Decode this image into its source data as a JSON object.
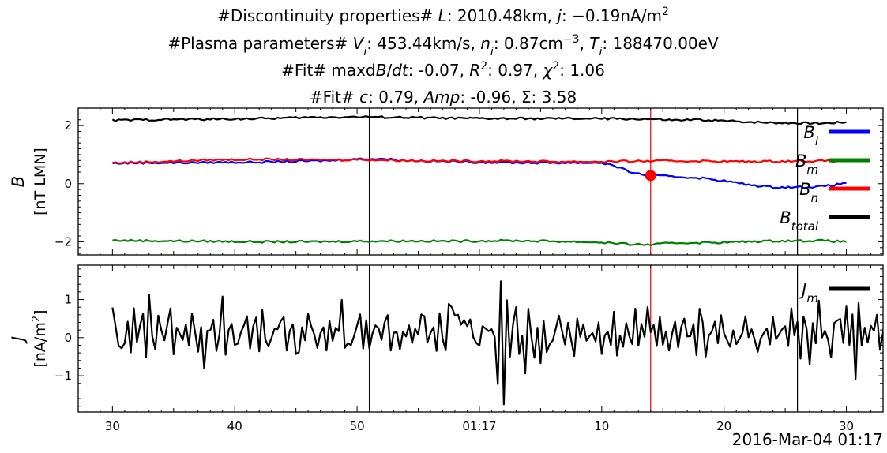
{
  "titles": {
    "line1": "#Discontinuity properties# L: 2010.48km, j: −0.19nA/m²",
    "line2": "#Plasma parameters# Vi: 453.44km/s, ni: 0.87cm⁻³, Ti: 188470.00eV",
    "line3": "#Fit# maxdB/dt: -0.07, R²: 0.97, χ²: 1.06",
    "line4": "#Fit# c: 0.79, Amp: -0.96, Σ: 3.58"
  },
  "x_axis": {
    "ticks": [
      {
        "t": 30,
        "label": "30"
      },
      {
        "t": 40,
        "label": "40"
      },
      {
        "t": 50,
        "label": "50"
      },
      {
        "t": 60,
        "label": "01:17"
      },
      {
        "t": 70,
        "label": "10"
      },
      {
        "t": 80,
        "label": "20"
      },
      {
        "t": 90,
        "label": "30"
      }
    ],
    "range": [
      27.2,
      93.0
    ],
    "datetime_label": "2016-Mar-04 01:17"
  },
  "colors": {
    "Bl": "#0000ff",
    "Bm": "#008000",
    "Bn": "#ff0000",
    "Btotal": "#000000",
    "Jm": "#000000",
    "marker_lines": "#000000",
    "event_line": "#ff0000"
  },
  "chart_data": [
    {
      "type": "line",
      "ylabel": "B",
      "yunit": "[nT LMN]",
      "ylim": [
        -2.45,
        2.6
      ],
      "yticks": [
        -2,
        0,
        2
      ],
      "legend_position": "right",
      "vlines": [
        51,
        86
      ],
      "event_line": 74,
      "event_point": {
        "x": 74,
        "y": 0.28
      },
      "series": [
        {
          "key": "Bl",
          "name": "B_l",
          "kind": "Bl",
          "points": [
            [
              30,
              0.7
            ],
            [
              33,
              0.72
            ],
            [
              36,
              0.72
            ],
            [
              39,
              0.74
            ],
            [
              42,
              0.74
            ],
            [
              45,
              0.77
            ],
            [
              48,
              0.8
            ],
            [
              50,
              0.85
            ],
            [
              52,
              0.86
            ],
            [
              54,
              0.8
            ],
            [
              57,
              0.77
            ],
            [
              60,
              0.74
            ],
            [
              63,
              0.72
            ],
            [
              66,
              0.72
            ],
            [
              69,
              0.72
            ],
            [
              70,
              0.72
            ],
            [
              71,
              0.62
            ],
            [
              72,
              0.45
            ],
            [
              73,
              0.34
            ],
            [
              74,
              0.28
            ],
            [
              75,
              0.26
            ],
            [
              76,
              0.24
            ],
            [
              78,
              0.2
            ],
            [
              80,
              0.1
            ],
            [
              82,
              -0.04
            ],
            [
              84,
              -0.12
            ],
            [
              86,
              -0.12
            ],
            [
              88,
              -0.1
            ],
            [
              90,
              0.02
            ]
          ]
        },
        {
          "key": "Bm",
          "name": "B_m",
          "kind": "Bm",
          "points": [
            [
              30,
              -1.95
            ],
            [
              34,
              -1.97
            ],
            [
              38,
              -1.98
            ],
            [
              42,
              -2.0
            ],
            [
              46,
              -2.0
            ],
            [
              50,
              -1.98
            ],
            [
              54,
              -1.97
            ],
            [
              58,
              -1.98
            ],
            [
              62,
              -1.96
            ],
            [
              66,
              -1.98
            ],
            [
              70,
              -2.02
            ],
            [
              72,
              -2.08
            ],
            [
              74,
              -2.1
            ],
            [
              76,
              -2.04
            ],
            [
              80,
              -2.02
            ],
            [
              84,
              -1.97
            ],
            [
              88,
              -1.96
            ],
            [
              90,
              -2.0
            ]
          ]
        },
        {
          "key": "Bn",
          "name": "B_n",
          "kind": "Bn",
          "points": [
            [
              30,
              0.72
            ],
            [
              34,
              0.76
            ],
            [
              38,
              0.82
            ],
            [
              42,
              0.84
            ],
            [
              46,
              0.82
            ],
            [
              50,
              0.83
            ],
            [
              54,
              0.8
            ],
            [
              58,
              0.78
            ],
            [
              62,
              0.78
            ],
            [
              66,
              0.76
            ],
            [
              70,
              0.76
            ],
            [
              74,
              0.78
            ],
            [
              78,
              0.78
            ],
            [
              82,
              0.76
            ],
            [
              86,
              0.78
            ],
            [
              90,
              0.78
            ]
          ]
        },
        {
          "key": "Btotal",
          "name": "B_total",
          "kind": "Btotal",
          "points": [
            [
              30,
              2.18
            ],
            [
              34,
              2.21
            ],
            [
              38,
              2.22
            ],
            [
              42,
              2.24
            ],
            [
              46,
              2.28
            ],
            [
              50,
              2.3
            ],
            [
              54,
              2.28
            ],
            [
              58,
              2.25
            ],
            [
              62,
              2.24
            ],
            [
              66,
              2.24
            ],
            [
              70,
              2.24
            ],
            [
              74,
              2.22
            ],
            [
              76,
              2.18
            ],
            [
              78,
              2.2
            ],
            [
              80,
              2.16
            ],
            [
              84,
              2.1
            ],
            [
              88,
              2.08
            ],
            [
              90,
              2.12
            ]
          ]
        }
      ]
    },
    {
      "type": "line",
      "ylabel": "J",
      "yunit": "[nA/m²]",
      "ylim": [
        -1.95,
        1.9
      ],
      "yticks": [
        -1,
        0,
        1
      ],
      "legend_position": "right",
      "vlines": [
        51,
        86
      ],
      "event_line": 74,
      "series": [
        {
          "key": "Jm",
          "name": "J_m",
          "kind": "Jm",
          "x_start": 30,
          "x_step": 0.25,
          "values": [
            0.79,
            0.31,
            -0.21,
            -0.28,
            -0.15,
            0.42,
            -0.39,
            0.77,
            -0.12,
            0.31,
            0.63,
            -0.52,
            1.12,
            0.05,
            -0.31,
            0.58,
            0.19,
            -0.07,
            0.37,
            0.77,
            -0.44,
            0.26,
            0.11,
            -0.06,
            0.35,
            -0.21,
            0.63,
            0.16,
            -0.37,
            0.28,
            -0.81,
            0.18,
            0.19,
            0.47,
            -0.35,
            0.09,
            1.08,
            -0.45,
            0.2,
            0.36,
            -0.19,
            -0.16,
            0.14,
            0.32,
            0.56,
            -0.29,
            0.29,
            0.53,
            -0.36,
            0.72,
            -0.05,
            -0.23,
            -0.01,
            0.23,
            0.22,
            0.43,
            0.54,
            -0.34,
            0.18,
            0.35,
            -0.43,
            -0.38,
            0.27,
            -0.07,
            0.62,
            0.3,
            0.08,
            -0.27,
            0.11,
            0.27,
            -0.34,
            0.44,
            -0.08,
            0.26,
            0.17,
            0.99,
            -0.27,
            -0.14,
            -0.2,
            0.04,
            0.32,
            0.61,
            -0.29,
            0.46,
            -0.29,
            0.1,
            0.32,
            0.25,
            -0.06,
            0.4,
            0.59,
            -0.34,
            0.13,
            0.14,
            -0.31,
            0.15,
            0.03,
            0.32,
            -0.14,
            0.23,
            0.08,
            0.61,
            0.56,
            -0.13,
            0.12,
            0.27,
            -0.35,
            0.64,
            -0.05,
            -0.33,
            0.89,
            0.79,
            0.58,
            0.6,
            0.34,
            0.46,
            0.3,
            0.48,
            0.01,
            -0.14,
            -0.21,
            0.3,
            0.24,
            0.17,
            0.22,
            0.02,
            -1.22,
            1.48,
            -1.75,
            0.98,
            -0.5,
            0.35,
            0.8,
            -0.43,
            0.05,
            -0.94,
            0.76,
            0.02,
            -0.53,
            0.26,
            -0.67,
            0.44,
            -0.38,
            -0.17,
            -0.07,
            0.24,
            0.58,
            0.18,
            -0.18,
            0.39,
            -0.06,
            -0.48,
            0.5,
            0.02,
            0.35,
            -0.08,
            0.04,
            0.12,
            -0.1,
            0.4,
            -0.43,
            0.06,
            0.16,
            -0.2,
            0.68,
            -0.47,
            0.06,
            -0.24,
            0.38,
            0.04,
            -0.17,
            0.76,
            -0.21,
            0.36,
            0.02,
            0.8,
            0.14,
            0.33,
            -0.22,
            0.55,
            -0.19,
            0.16,
            -0.34,
            0.1,
            0.42,
            -0.26,
            0.28,
            0.5,
            0.03,
            0.04,
            0.36,
            -0.46,
            0.76,
            0.41,
            -0.5,
            0.05,
            0.16,
            0.42,
            -0.15,
            0.59,
            0.11,
            -0.07,
            -0.24,
            0.19,
            -0.17,
            -0.04,
            0.12,
            0.56,
            0.01,
            0.22,
            -0.05,
            -0.37,
            -0.02,
            0.12,
            0.24,
            -0.18,
            0.54,
            -0.04,
            0.09,
            0.22,
            0.3,
            -0.22,
            0.77,
            0.06,
            0.42,
            -0.55,
            0.55,
            0.24,
            -0.71,
            0.38,
            -0.15,
            0.97,
            0.0,
            0.18,
            -0.05,
            -0.52,
            0.38,
            0.45,
            0.49,
            -0.14,
            0.82,
            -0.19,
            0.61,
            -1.09,
            0.91,
            -0.21,
            0.26,
            -0.13,
            0.31,
            0.18,
            0.6,
            -0.32,
            0.13,
            0.9,
            0.57,
            -0.96,
            0.46,
            0.73,
            -0.49,
            0.56,
            -0.21,
            -0.68,
            0.87,
            0.14,
            -0.24,
            0.08,
            -0.7,
            0.84,
            -0.63,
            0.32,
            -0.03,
            -0.27,
            0.48,
            -0.84,
            0.6,
            -0.1,
            -1.25,
            1.18,
            -0.1,
            -0.37,
            0.27,
            -0.13,
            0.26,
            -0.32,
            -0.46,
            0.07,
            0.58,
            -0.1,
            0.12,
            -0.32,
            0.83,
            -0.9,
            0.25,
            0.28,
            0.79,
            0.11,
            -0.58,
            0.65,
            -0.41,
            0.7,
            -0.72,
            -0.05,
            0.98,
            -0.4,
            -0.17,
            0.65,
            0.52,
            0.06,
            -0.61,
            0.57,
            -0.63,
            0.11,
            0.14,
            -0.08,
            0.21,
            0.42,
            -0.4,
            0.4,
            -0.07,
            -0.46,
            -0.01,
            0.98,
            -0.38,
            -0.65,
            0.53,
            -0.2,
            0.11,
            0.14,
            -0.08,
            1.78,
            -0.29,
            0.4,
            0.5,
            -1.01,
            -0.18,
            0.31,
            0.09,
            -0.22,
            1.17,
            0.23,
            -0.76,
            0.55,
            0.29,
            -1.05,
            0.47,
            0.29,
            -0.85,
            1.31,
            0.63,
            -0.27,
            0.63,
            0.09,
            -0.44,
            0.33,
            -0.43,
            0.77,
            0.01,
            0.61,
            0.05,
            0.08,
            -0.09,
            -0.09,
            0.21,
            -0.5,
            1.15,
            -0.32,
            0.43,
            -0.53,
            0.86,
            -0.7,
            0.09,
            0.45,
            -0.56,
            0.47,
            -0.4
          ]
        }
      ]
    }
  ]
}
